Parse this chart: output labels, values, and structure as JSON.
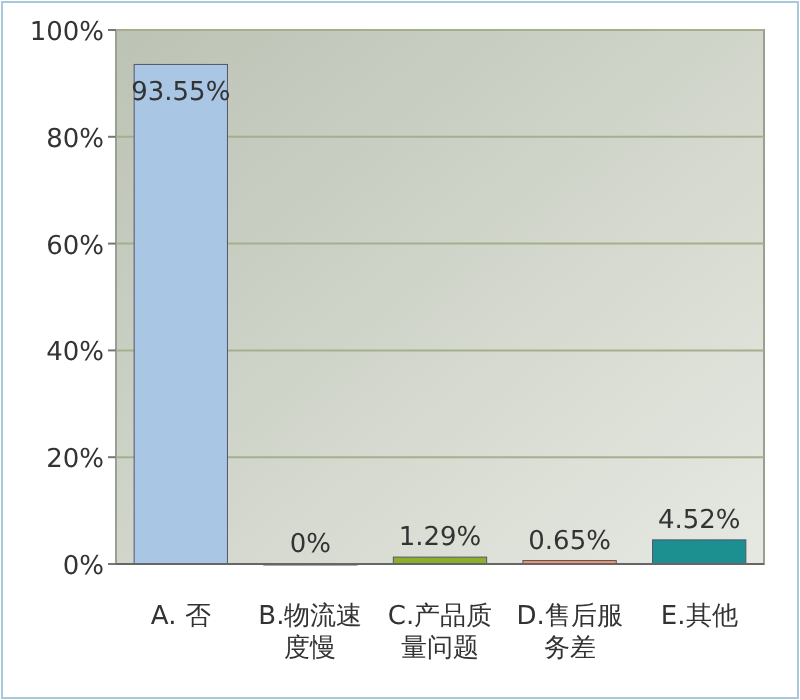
{
  "chart_data": {
    "type": "bar",
    "categories": [
      "A. 否",
      "B.物流速度慢",
      "C.产品质量问题",
      "D.售后服务差",
      "E.其他"
    ],
    "values": [
      93.55,
      0,
      1.29,
      0.65,
      4.52
    ],
    "colors": [
      "#a9c6e4",
      "#e6b420",
      "#8cb02c",
      "#f0946a",
      "#1c9090"
    ],
    "value_labels": [
      "93.55%",
      "0%",
      "1.29%",
      "0.65%",
      "4.52%"
    ],
    "ylim": [
      0,
      100
    ],
    "yticks": [
      {
        "value": 0,
        "label": "0%"
      },
      {
        "value": 20,
        "label": "20%"
      },
      {
        "value": 40,
        "label": "40%"
      },
      {
        "value": 60,
        "label": "60%"
      },
      {
        "value": 80,
        "label": "80%"
      },
      {
        "value": 100,
        "label": "100%"
      }
    ],
    "grid": "y"
  }
}
